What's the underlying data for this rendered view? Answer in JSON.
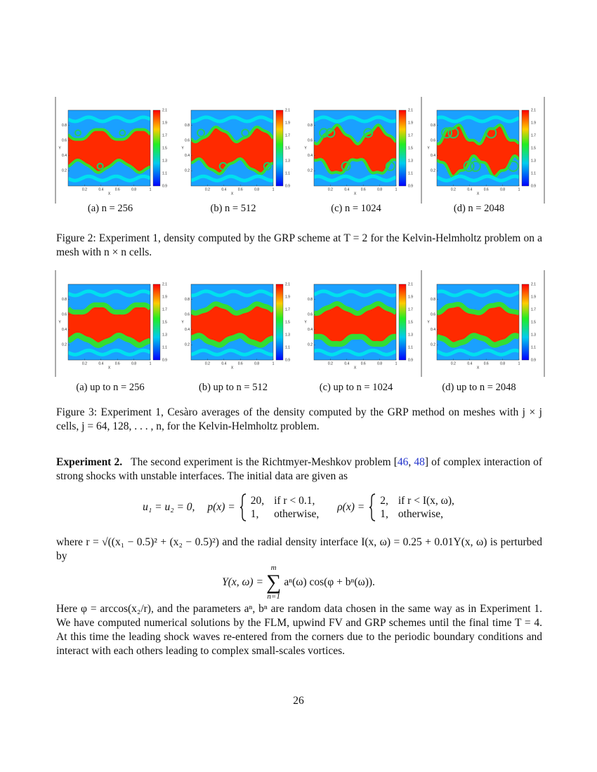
{
  "panel_axes": {
    "colorbar_ticks": [
      2.1,
      1.9,
      1.7,
      1.5,
      1.3,
      1.1,
      0.9
    ],
    "x_ticks": [
      0.2,
      0.4,
      0.6,
      0.8,
      1
    ],
    "y_ticks": [
      0.8,
      0.6,
      0.4,
      0.2
    ],
    "x_label": "X",
    "y_label": "Y"
  },
  "figure2": {
    "panels": [
      {
        "label": "(a) n = 256"
      },
      {
        "label": "(b) n = 512"
      },
      {
        "label": "(c) n = 1024"
      },
      {
        "label": "(d) n = 2048"
      }
    ],
    "caption": "Figure 2: Experiment 1, density computed by the GRP scheme at T = 2 for the Kelvin-Helmholtz problem on a mesh with n × n cells."
  },
  "figure3": {
    "panels": [
      {
        "label": "(a) up to n = 256"
      },
      {
        "label": "(b) up to n = 512"
      },
      {
        "label": "(c) up to n = 1024"
      },
      {
        "label": "(d) up to n = 2048"
      }
    ],
    "caption": "Figure 3: Experiment 1, Cesàro averages of the density computed by the GRP method on meshes with j × j cells, j = 64, 128, . . . , n, for the Kelvin-Helmholtz problem."
  },
  "experiment": {
    "heading": "Experiment 2.",
    "intro_parts": [
      "The second experiment is the Richtmyer-Meshkov problem [",
      "46",
      ", ",
      "48",
      "] of complex interaction of strong shocks with unstable interfaces. The initial data are given as"
    ],
    "eq_initial": {
      "velocity": "u₁ = u₂ = 0,",
      "pressure_lhs": "p(x) =",
      "pressure_cases": [
        [
          "20,",
          "if r < 0.1,"
        ],
        [
          "1,",
          "otherwise,"
        ]
      ],
      "density_lhs": "ρ(x) =",
      "density_cases": [
        [
          "2,",
          "if r < I(x, ω),"
        ],
        [
          "1,",
          "otherwise,"
        ]
      ]
    },
    "where_text": "where r = √((x₁ − 0.5)² + (x₂ − 0.5)²) and the radial density interface I(x, ω) = 0.25 + 0.01Y(x, ω) is perturbed by",
    "eq_perturbation": {
      "lhs": "Y(x, ω) =",
      "sum_top": "m",
      "sum_symbol": "∑",
      "sum_bottom": "n=1",
      "term": "aⁿ(ω) cos(φ + bⁿ(ω))."
    },
    "closing": "Here φ = arccos(x₂/r), and the parameters aⁿ, bⁿ are random data chosen in the same way as in Experiment 1. We have computed numerical solutions by the FLM, upwind FV and GRP schemes until the final time T = 4. At this time the leading shock waves re-entered from the corners due to the periodic boundary conditions and interact with each others leading to complex small-scales vortices."
  },
  "page_number": "26"
}
